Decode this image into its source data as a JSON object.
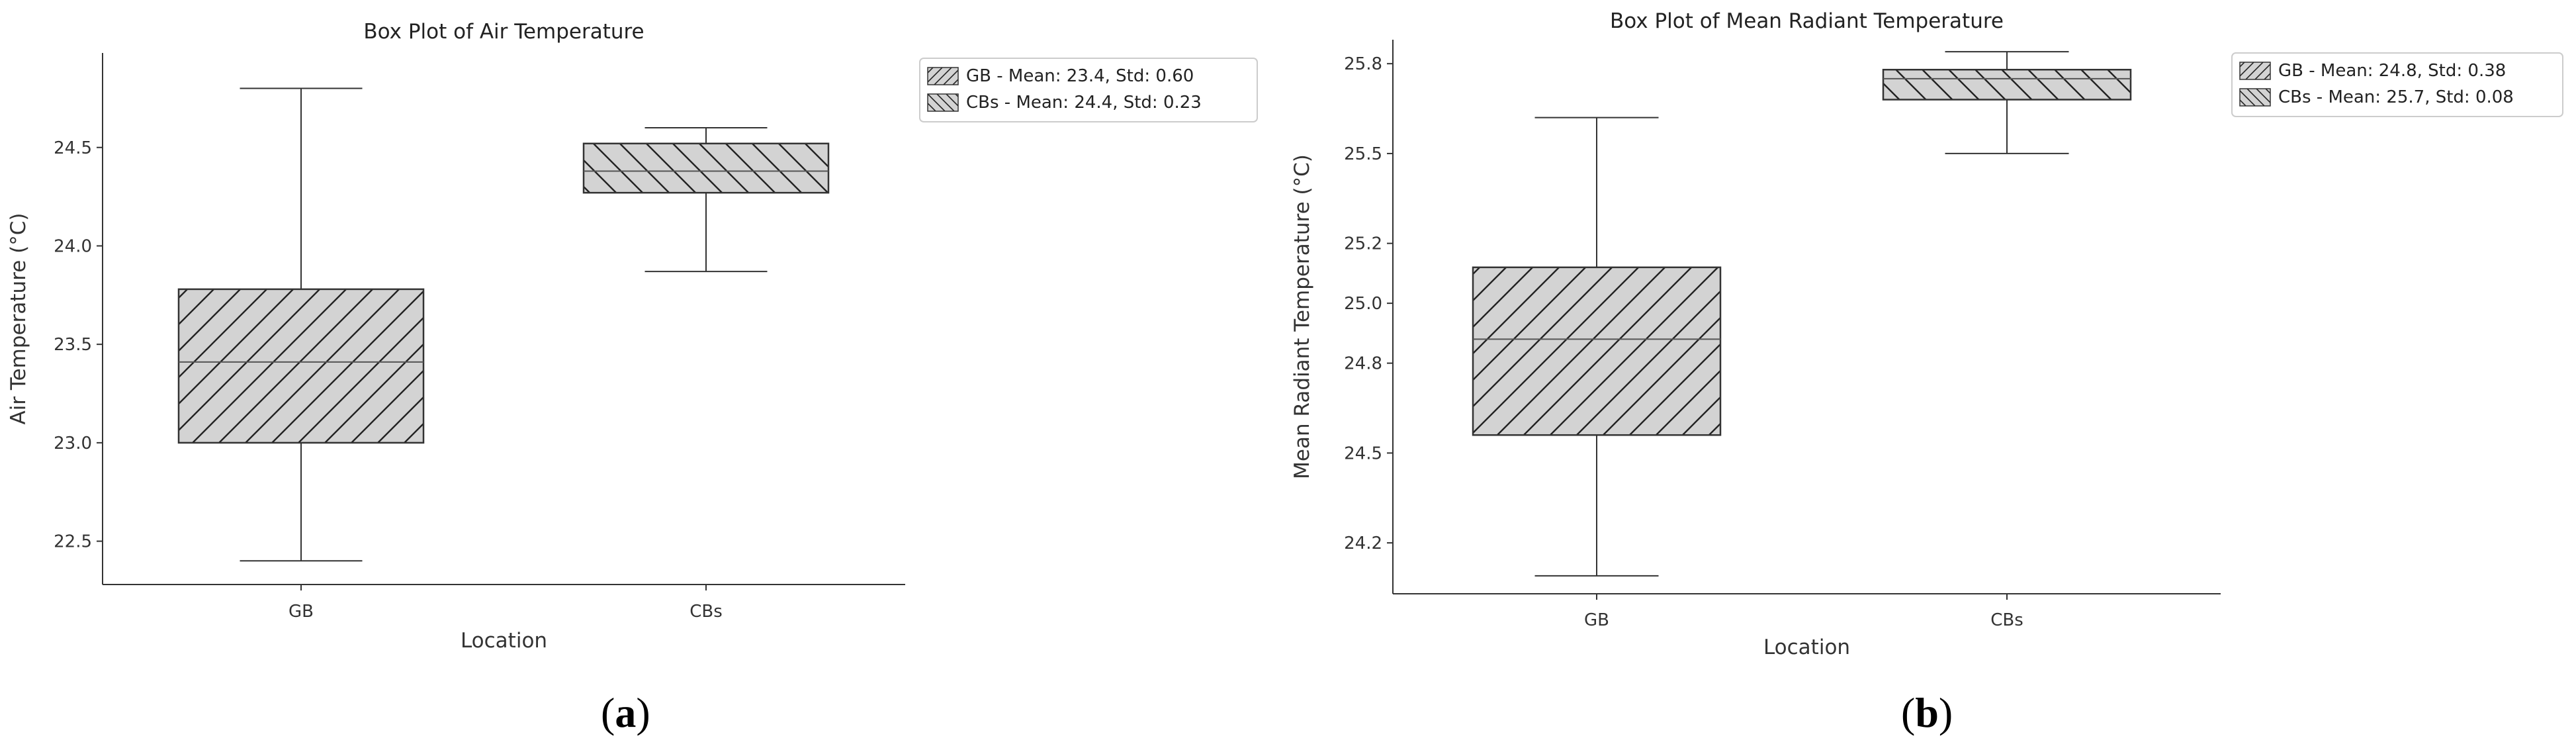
{
  "chart_data": [
    {
      "type": "box",
      "title": "Box Plot of Air Temperature",
      "xlabel": "Location",
      "ylabel": "Air Temperature (°C)",
      "categories": [
        "GB",
        "CBs"
      ],
      "ylim": [
        22.28,
        24.98
      ],
      "yticks": [
        22.5,
        23.0,
        23.5,
        24.0,
        24.5
      ],
      "ytick_labels": [
        "22.5",
        "23.0",
        "23.5",
        "24.0",
        "24.5"
      ],
      "boxes": [
        {
          "name": "GB",
          "whisker_low": 22.4,
          "q1": 23.0,
          "median": 23.41,
          "q3": 23.78,
          "whisker_high": 24.8,
          "hatch": "forward"
        },
        {
          "name": "CBs",
          "whisker_low": 23.87,
          "q1": 24.27,
          "median": 24.38,
          "q3": 24.52,
          "whisker_high": 24.6,
          "hatch": "backward"
        }
      ],
      "legend": [
        "GB - Mean: 23.4, Std: 0.60",
        "CBs - Mean: 24.4, Std: 0.23"
      ],
      "legend_position": "outside-top-right",
      "fill_color": "#d3d3d3",
      "edge_color": "#000000",
      "caption": "a"
    },
    {
      "type": "box",
      "title": "Box Plot of Mean Radiant Temperature",
      "xlabel": "Location",
      "ylabel": "Mean Radiant Temperature (°C)",
      "categories": [
        "GB",
        "CBs"
      ],
      "ylim": [
        24.03,
        25.88
      ],
      "yticks": [
        24.2,
        24.5,
        24.8,
        25.0,
        25.2,
        25.5,
        25.8
      ],
      "ytick_labels": [
        "24.2",
        "24.5",
        "24.8",
        "25.0",
        "25.2",
        "25.5",
        "25.8"
      ],
      "boxes": [
        {
          "name": "GB",
          "whisker_low": 24.09,
          "q1": 24.56,
          "median": 24.88,
          "q3": 25.12,
          "whisker_high": 25.62,
          "hatch": "forward"
        },
        {
          "name": "CBs",
          "whisker_low": 25.5,
          "q1": 25.68,
          "median": 25.75,
          "q3": 25.78,
          "whisker_high": 25.84,
          "hatch": "backward"
        }
      ],
      "legend": [
        "GB - Mean: 24.8, Std: 0.38",
        "CBs - Mean: 25.7, Std: 0.08"
      ],
      "legend_position": "outside-top-right",
      "fill_color": "#d3d3d3",
      "edge_color": "#000000",
      "caption": "b"
    }
  ]
}
